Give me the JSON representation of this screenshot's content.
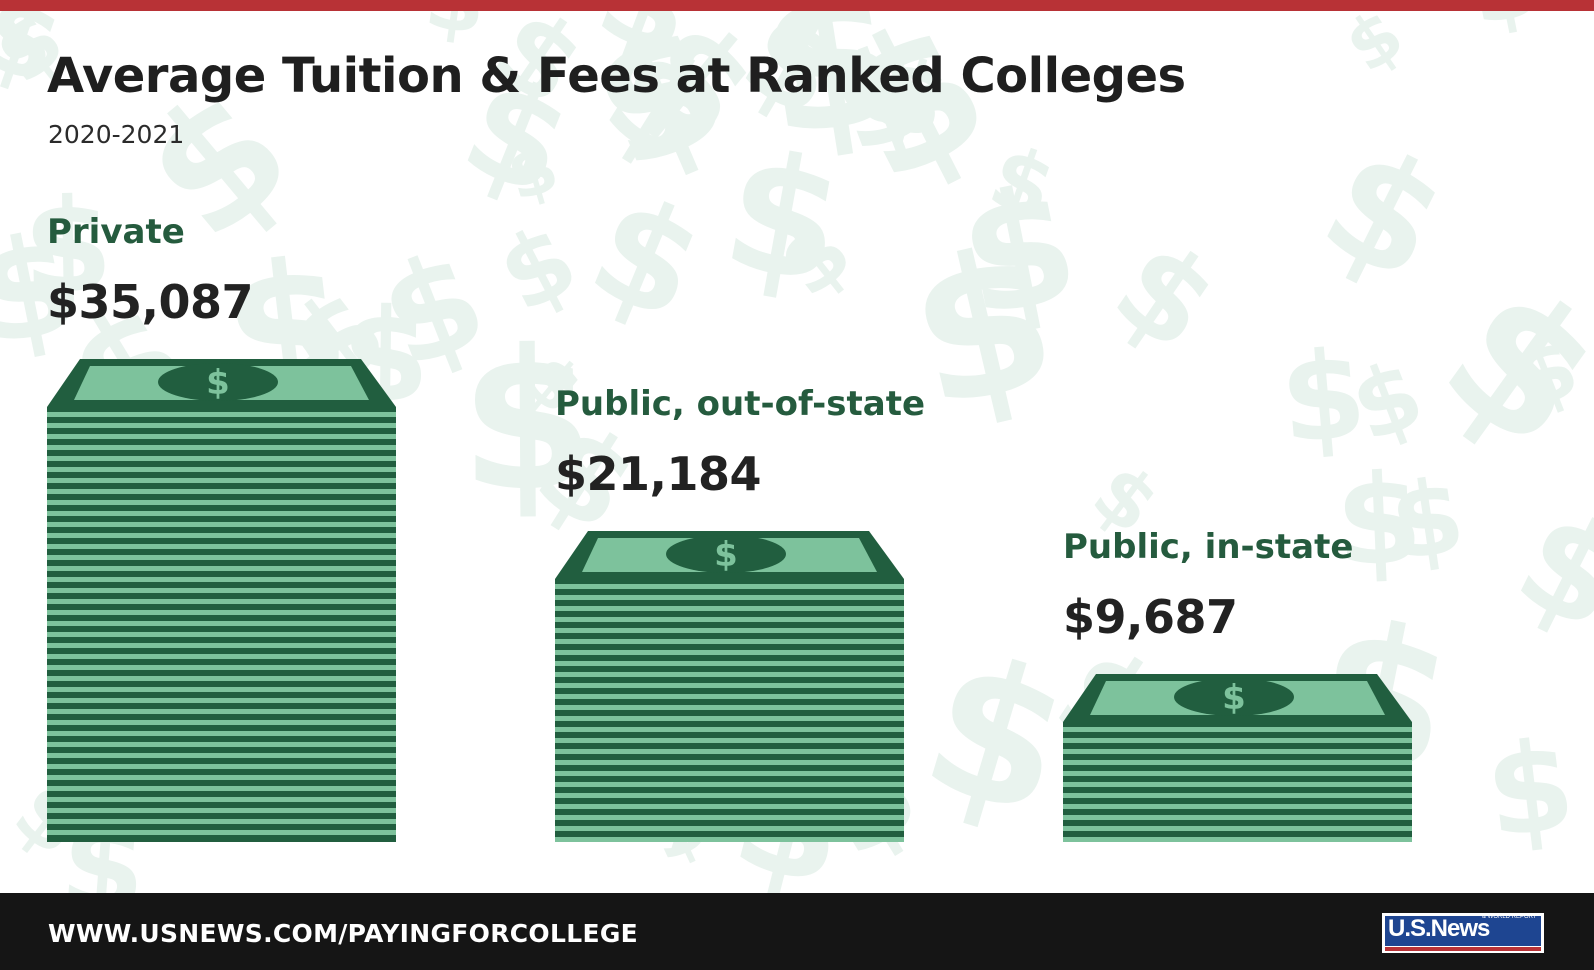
{
  "title": "Average Tuition & Fees at Ranked Colleges",
  "subtitle": "2020-2021",
  "background_symbol": "$",
  "footer": {
    "url": "WWW.USNEWS.COM/PAYINGFORCOLLEGE",
    "logo_text": "U.S.News",
    "logo_small": "& WORLD REPORT"
  },
  "colors": {
    "top_stripe": "#b83236",
    "stack_dark": "#215e3f",
    "stack_light": "#7dc29c",
    "category_text": "#255b3e",
    "value_text": "#222222",
    "footer_bg": "#151515",
    "logo_blue": "#1e4591"
  },
  "chart_data": {
    "type": "bar",
    "title": "Average Tuition & Fees at Ranked Colleges",
    "subtitle": "2020-2021",
    "categories": [
      "Private",
      "Public, out-of-state",
      "Public, in-state"
    ],
    "values": [
      35087,
      21184,
      9687
    ],
    "value_labels": [
      "$35,087",
      "$21,184",
      "$9,687"
    ],
    "bar_icon": "stack-of-dollar-bills",
    "xlabel": "",
    "ylabel": "",
    "grid": false,
    "legend": false
  }
}
